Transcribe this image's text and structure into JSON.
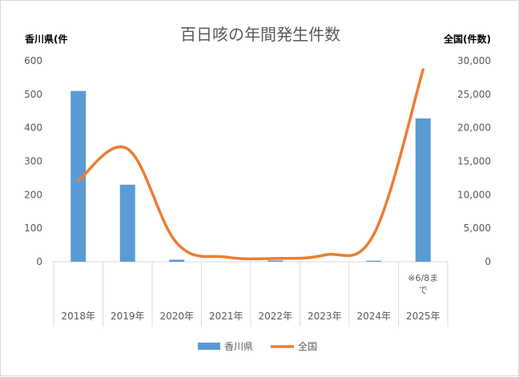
{
  "chart_data": {
    "type": "bar+line",
    "title": "百日咳の年間発生件数",
    "categories": [
      "2018年",
      "2019年",
      "2020年",
      "2021年",
      "2022年",
      "2023年",
      "2024年",
      "2025年"
    ],
    "category_note": {
      "index": 7,
      "lines": [
        "※6/8ま",
        "で"
      ]
    },
    "left_axis": {
      "label": "香川県(件",
      "min": 0,
      "max": 600,
      "step": 100,
      "tick_labels": [
        "0",
        "100",
        "200",
        "300",
        "400",
        "500",
        "600"
      ]
    },
    "right_axis": {
      "label": "全国(件数)",
      "min": 0,
      "max": 30000,
      "step": 5000,
      "tick_labels": [
        "0",
        "5,000",
        "10,000",
        "15,000",
        "20,000",
        "25,000",
        "30,000"
      ]
    },
    "series": [
      {
        "name": "香川県",
        "type": "bar",
        "axis": "left",
        "color": "#5b9bd5",
        "values": [
          510,
          230,
          6,
          0,
          4,
          0,
          3,
          428
        ]
      },
      {
        "name": "全国",
        "type": "line",
        "axis": "right",
        "color": "#ed7d31",
        "values": [
          12100,
          16850,
          2800,
          700,
          500,
          1000,
          4100,
          28700
        ]
      }
    ],
    "legend_position": "bottom",
    "grid": false
  }
}
